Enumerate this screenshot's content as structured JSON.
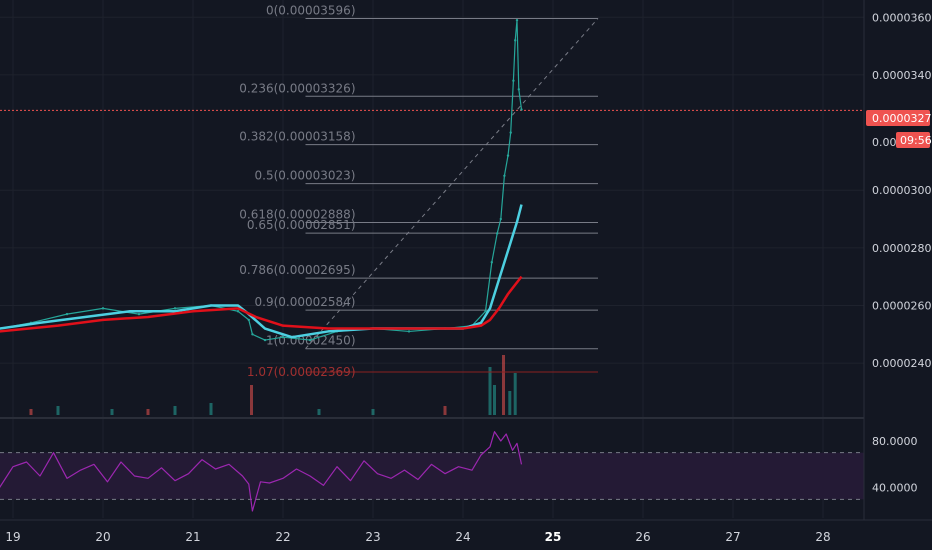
{
  "colors": {
    "background": "#131722",
    "grid": "#1e222d",
    "fib_line": "#787b86",
    "fib_ext": "#8b2020",
    "candle_up": "#26a69a",
    "candle_down": "#ef5350",
    "ma_fast": "#4dd0e1",
    "ma_slow": "#e0101a",
    "rsi_line": "#9c27b0",
    "rsi_band": "#241a35",
    "last_price": "#ef5350"
  },
  "chart_data": [
    {
      "type": "line",
      "title": "",
      "y_axis_ticks": [
        "0.00003600",
        "0.00003400",
        "0.00003277",
        "0.00003000",
        "0.00002800",
        "0.00002600",
        "0.00002400"
      ],
      "x_axis_ticks": [
        "19",
        "20",
        "21",
        "22",
        "23",
        "24",
        "25",
        "26",
        "27",
        "28"
      ],
      "x_ticks_bold": [
        "25"
      ],
      "ylim": [
        2.22e-05,
        3.66e-05
      ],
      "last_price": {
        "value": "0.00003277",
        "countdown": "09:56"
      },
      "overlapped_axis_label": "0.000",
      "fibonacci": {
        "levels": [
          {
            "label": "0(0.00003596)",
            "value": 3.596e-05
          },
          {
            "label": "0.236(0.00003326)",
            "value": 3.326e-05
          },
          {
            "label": "0.382(0.00003158)",
            "value": 3.158e-05
          },
          {
            "label": "0.5(0.00003023)",
            "value": 3.023e-05
          },
          {
            "label": "0.618(0.00002888)",
            "value": 2.888e-05
          },
          {
            "label": "0.65(0.00002851)",
            "value": 2.851e-05
          },
          {
            "label": "0.786(0.00002695)",
            "value": 2.695e-05
          },
          {
            "label": "0.9(0.00002584)",
            "value": 2.584e-05
          },
          {
            "label": "1(0.00002450)",
            "value": 2.45e-05
          }
        ],
        "extension": {
          "label": "1.07(0.00002369)",
          "value": 2.369e-05
        },
        "trend_from": {
          "x": 22.25,
          "y": 2.45e-05
        },
        "trend_to": {
          "x": 25.5,
          "y": 3.596e-05
        }
      },
      "series": [
        {
          "name": "",
          "kind": "price",
          "x": [
            18.85,
            19.2,
            19.6,
            20.0,
            20.4,
            20.8,
            21.2,
            21.5,
            21.62,
            21.66,
            21.8,
            22.0,
            22.3,
            22.6,
            23.0,
            23.4,
            23.8,
            24.1,
            24.25,
            24.32,
            24.38,
            24.42,
            24.46,
            24.5,
            24.53,
            24.56,
            24.58,
            24.6,
            24.62,
            24.65
          ],
          "y": [
            2.52e-05,
            2.54e-05,
            2.57e-05,
            2.59e-05,
            2.57e-05,
            2.59e-05,
            2.6e-05,
            2.58e-05,
            2.55e-05,
            2.5e-05,
            2.48e-05,
            2.49e-05,
            2.48e-05,
            2.51e-05,
            2.52e-05,
            2.51e-05,
            2.52e-05,
            2.53e-05,
            2.58e-05,
            2.75e-05,
            2.85e-05,
            2.9e-05,
            3.05e-05,
            3.12e-05,
            3.2e-05,
            3.38e-05,
            3.52e-05,
            3.59e-05,
            3.35e-05,
            3.28e-05
          ]
        },
        {
          "name": "",
          "kind": "ma_fast",
          "x": [
            18.85,
            19.3,
            19.8,
            20.3,
            20.8,
            21.2,
            21.5,
            21.62,
            21.8,
            22.1,
            22.5,
            23.0,
            23.5,
            24.0,
            24.2,
            24.3,
            24.4,
            24.5,
            24.6,
            24.65
          ],
          "y": [
            2.52e-05,
            2.54e-05,
            2.56e-05,
            2.58e-05,
            2.58e-05,
            2.6e-05,
            2.6e-05,
            2.57e-05,
            2.52e-05,
            2.49e-05,
            2.51e-05,
            2.52e-05,
            2.52e-05,
            2.52e-05,
            2.54e-05,
            2.59e-05,
            2.69e-05,
            2.79e-05,
            2.89e-05,
            2.95e-05
          ]
        },
        {
          "name": "",
          "kind": "ma_slow",
          "x": [
            18.85,
            19.5,
            20.0,
            20.5,
            21.0,
            21.5,
            21.7,
            22.0,
            22.5,
            23.0,
            23.5,
            24.0,
            24.2,
            24.3,
            24.4,
            24.5,
            24.65
          ],
          "y": [
            2.51e-05,
            2.53e-05,
            2.55e-05,
            2.56e-05,
            2.58e-05,
            2.59e-05,
            2.56e-05,
            2.53e-05,
            2.52e-05,
            2.52e-05,
            2.52e-05,
            2.52e-05,
            2.53e-05,
            2.55e-05,
            2.59e-05,
            2.64e-05,
            2.7e-05
          ]
        }
      ],
      "volume": {
        "x": [
          19.2,
          19.5,
          20.1,
          20.5,
          20.8,
          21.2,
          21.65,
          22.4,
          23.0,
          23.8,
          24.3,
          24.35,
          24.45,
          24.52,
          24.58
        ],
        "value": [
          2,
          3,
          2,
          2,
          3,
          4,
          10,
          2,
          2,
          3,
          16,
          10,
          20,
          8,
          14
        ]
      }
    },
    {
      "type": "line",
      "title": "",
      "y_axis_ticks": [
        "80.0000",
        "40.0000"
      ],
      "ylim": [
        14,
        98
      ],
      "bands": [
        70,
        30
      ],
      "series": [
        {
          "name": "",
          "x": [
            18.85,
            19.0,
            19.15,
            19.3,
            19.45,
            19.6,
            19.75,
            19.9,
            20.05,
            20.2,
            20.35,
            20.5,
            20.65,
            20.8,
            20.95,
            21.1,
            21.25,
            21.4,
            21.55,
            21.62,
            21.66,
            21.75,
            21.85,
            22.0,
            22.15,
            22.3,
            22.45,
            22.6,
            22.75,
            22.9,
            23.05,
            23.2,
            23.35,
            23.5,
            23.65,
            23.8,
            23.95,
            24.1,
            24.2,
            24.3,
            24.35,
            24.42,
            24.48,
            24.55,
            24.6,
            24.65
          ],
          "y": [
            40,
            58,
            62,
            50,
            70,
            48,
            55,
            60,
            45,
            62,
            50,
            48,
            57,
            46,
            52,
            64,
            56,
            60,
            50,
            43,
            20,
            45,
            44,
            48,
            56,
            50,
            42,
            58,
            46,
            63,
            52,
            48,
            55,
            47,
            60,
            52,
            58,
            55,
            68,
            75,
            88,
            80,
            86,
            72,
            78,
            60
          ]
        }
      ]
    }
  ]
}
